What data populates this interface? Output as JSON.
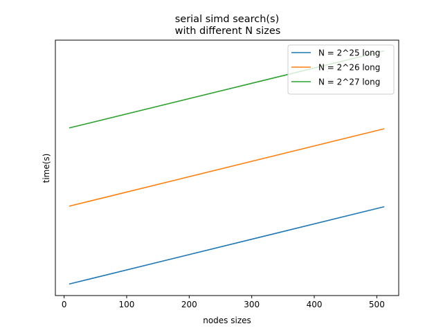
{
  "chart_data": {
    "type": "line",
    "title": "serial  simd search(s)",
    "subtitle": "with different N sizes",
    "xlabel": "nodes sizes",
    "ylabel": "time(s)",
    "xlim": [
      -14,
      535
    ],
    "ylim": [
      0,
      1
    ],
    "x_ticks": [
      0,
      100,
      200,
      300,
      400,
      500
    ],
    "x_tick_labels": [
      "0",
      "100",
      "200",
      "300",
      "400",
      "500"
    ],
    "y_ticks_visible": false,
    "grid": false,
    "legend": "top-right",
    "x": [
      8,
      512
    ],
    "series": [
      {
        "name": "N = 2^25 long",
        "color": "#1f77b4",
        "values": [
          0.045,
          0.348
        ]
      },
      {
        "name": "N = 2^26 long",
        "color": "#ff7f0e",
        "values": [
          0.35,
          0.653
        ]
      },
      {
        "name": "N = 2^27 long",
        "color": "#2ca02c",
        "values": [
          0.656,
          0.958
        ]
      }
    ]
  }
}
